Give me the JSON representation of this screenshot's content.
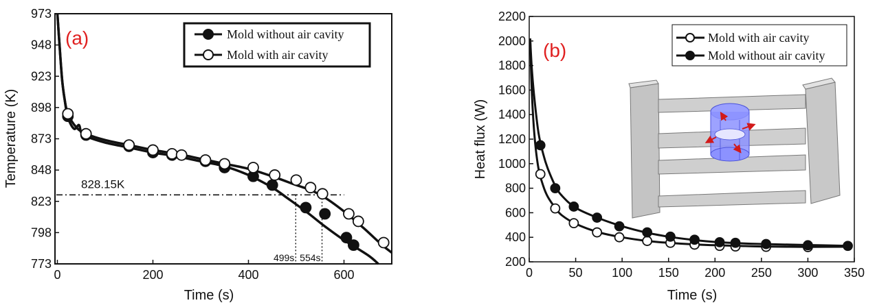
{
  "chart_data": [
    {
      "type": "line",
      "panel_label": "(a)",
      "xlabel": "Time (s)",
      "ylabel": "Temperature (K)",
      "xlim": [
        -5,
        700
      ],
      "ylim": [
        773,
        973
      ],
      "xticks": [
        0,
        200,
        400,
        600
      ],
      "xtick_labels": [
        "0",
        "200",
        "400",
        "600"
      ],
      "yticks": [
        773,
        798,
        823,
        848,
        873,
        898,
        923,
        948,
        973
      ],
      "yticks_labels": [
        "773",
        "798",
        "823",
        "848",
        "873",
        "898",
        "923",
        "948",
        "973"
      ],
      "legend_position": "top-right",
      "series": [
        {
          "name": "Mold without air cavity",
          "marker": "filled-circle",
          "curve": [
            [
              0,
              973
            ],
            [
              5,
              945
            ],
            [
              10,
              920
            ],
            [
              15,
              905
            ],
            [
              22,
              890
            ],
            [
              35,
              881
            ],
            [
              45,
              884
            ],
            [
              50,
              878
            ],
            [
              60,
              875
            ],
            [
              100,
              870
            ],
            [
              150,
              866
            ],
            [
              200,
              862
            ],
            [
              250,
              859
            ],
            [
              300,
              855
            ],
            [
              350,
              851
            ],
            [
              400,
              844
            ],
            [
              450,
              834
            ],
            [
              480,
              826
            ],
            [
              520,
              815
            ],
            [
              560,
              803
            ],
            [
              600,
              792
            ],
            [
              650,
              780
            ],
            [
              672,
              773
            ]
          ],
          "markers": [
            [
              22,
              891
            ],
            [
              60,
              876
            ],
            [
              150,
              867
            ],
            [
              200,
              862
            ],
            [
              240,
              860
            ],
            [
              310,
              855
            ],
            [
              350,
              850
            ],
            [
              410,
              843
            ],
            [
              450,
              836
            ],
            [
              520,
              818
            ],
            [
              560,
              813
            ],
            [
              605,
              794
            ],
            [
              620,
              788
            ]
          ]
        },
        {
          "name": "Mold with air cavity",
          "marker": "open-circle",
          "curve": [
            [
              0,
              973
            ],
            [
              5,
              945
            ],
            [
              10,
              920
            ],
            [
              15,
              905
            ],
            [
              22,
              893
            ],
            [
              40,
              882
            ],
            [
              60,
              877
            ],
            [
              100,
              872
            ],
            [
              150,
              868
            ],
            [
              200,
              864
            ],
            [
              250,
              861
            ],
            [
              300,
              857
            ],
            [
              350,
              853
            ],
            [
              400,
              849
            ],
            [
              450,
              843
            ],
            [
              500,
              836
            ],
            [
              530,
              832
            ],
            [
              560,
              826
            ],
            [
              600,
              815
            ],
            [
              640,
              802
            ],
            [
              680,
              788
            ],
            [
              700,
              782
            ]
          ],
          "markers": [
            [
              22,
              893
            ],
            [
              60,
              877
            ],
            [
              150,
              868
            ],
            [
              200,
              864
            ],
            [
              240,
              861
            ],
            [
              260,
              860
            ],
            [
              310,
              856
            ],
            [
              350,
              853
            ],
            [
              410,
              850
            ],
            [
              455,
              844
            ],
            [
              500,
              840
            ],
            [
              530,
              834
            ],
            [
              555,
              829
            ],
            [
              610,
              813
            ],
            [
              630,
              807
            ],
            [
              683,
              790
            ]
          ]
        }
      ],
      "annotations": [
        {
          "text": "828.15K",
          "type": "hline",
          "y": 828.15,
          "x_range": [
            -5,
            560
          ]
        },
        {
          "text": "499s",
          "type": "vline",
          "x": 499,
          "y_range": [
            773,
            828.15
          ]
        },
        {
          "text": "554s",
          "type": "vline",
          "x": 554,
          "y_range": [
            773,
            828.15
          ]
        }
      ]
    },
    {
      "type": "line",
      "panel_label": "(b)",
      "xlabel": "Time (s)",
      "ylabel": "Heat flux (W)",
      "xlim": [
        0,
        350
      ],
      "ylim": [
        200,
        2200
      ],
      "xticks": [
        0,
        50,
        100,
        150,
        200,
        250,
        300,
        350
      ],
      "xtick_labels": [
        "0",
        "50",
        "100",
        "150",
        "200",
        "250",
        "300",
        "350"
      ],
      "yticks": [
        200,
        400,
        600,
        800,
        1000,
        1200,
        1400,
        1600,
        1800,
        2000,
        2200
      ],
      "ytick_labels": [
        "200",
        "400",
        "600",
        "800",
        "1000",
        "1200",
        "1400",
        "1600",
        "1800",
        "2000",
        "2200"
      ],
      "legend_position": "top-right",
      "inset": "3D mold geometry with highlighted cylindrical air cavity",
      "series": [
        {
          "name": "Mold with air cavity",
          "marker": "open-circle",
          "curve": [
            [
              1,
              2020
            ],
            [
              3,
              1550
            ],
            [
              6,
              1200
            ],
            [
              10,
              960
            ],
            [
              15,
              820
            ],
            [
              20,
              730
            ],
            [
              28,
              640
            ],
            [
              35,
              580
            ],
            [
              50,
              510
            ],
            [
              75,
              440
            ],
            [
              100,
              400
            ],
            [
              125,
              372
            ],
            [
              150,
              355
            ],
            [
              175,
              343
            ],
            [
              200,
              335
            ],
            [
              225,
              330
            ],
            [
              250,
              325
            ],
            [
              300,
              322
            ],
            [
              345,
              323
            ]
          ],
          "markers": [
            [
              12,
              915
            ],
            [
              28,
              635
            ],
            [
              48,
              515
            ],
            [
              73,
              440
            ],
            [
              97,
              400
            ],
            [
              127,
              370
            ],
            [
              152,
              355
            ],
            [
              178,
              340
            ],
            [
              205,
              330
            ],
            [
              222,
              325
            ],
            [
              255,
              322
            ],
            [
              300,
              320
            ]
          ]
        },
        {
          "name": "Mold without air cavity",
          "marker": "filled-circle",
          "curve": [
            [
              1,
              2020
            ],
            [
              3,
              1750
            ],
            [
              6,
              1500
            ],
            [
              10,
              1250
            ],
            [
              15,
              1080
            ],
            [
              20,
              960
            ],
            [
              28,
              820
            ],
            [
              35,
              740
            ],
            [
              50,
              640
            ],
            [
              75,
              555
            ],
            [
              100,
              490
            ],
            [
              125,
              440
            ],
            [
              150,
              405
            ],
            [
              175,
              380
            ],
            [
              200,
              362
            ],
            [
              225,
              352
            ],
            [
              250,
              345
            ],
            [
              300,
              337
            ],
            [
              345,
              330
            ]
          ],
          "markers": [
            [
              12,
              1150
            ],
            [
              28,
              800
            ],
            [
              48,
              650
            ],
            [
              73,
              560
            ],
            [
              97,
              490
            ],
            [
              127,
              440
            ],
            [
              152,
              405
            ],
            [
              178,
              380
            ],
            [
              205,
              360
            ],
            [
              222,
              355
            ],
            [
              255,
              345
            ],
            [
              300,
              335
            ],
            [
              343,
              330
            ]
          ]
        }
      ]
    }
  ]
}
